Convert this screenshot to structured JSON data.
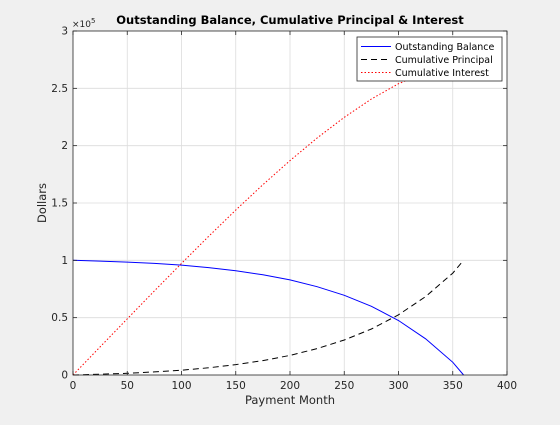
{
  "chart_data": {
    "type": "line",
    "title": "Outstanding Balance, Cumulative Principal & Interest",
    "xlabel": "Payment Month",
    "ylabel": "Dollars",
    "xlim": [
      0,
      400
    ],
    "ylim": [
      0,
      300000
    ],
    "xticks": [
      0,
      50,
      100,
      150,
      200,
      250,
      300,
      350,
      400
    ],
    "xtick_labels": [
      "0",
      "50",
      "100",
      "150",
      "200",
      "250",
      "300",
      "350",
      "400"
    ],
    "yticks": [
      0,
      50000,
      100000,
      150000,
      200000,
      250000,
      300000
    ],
    "ytick_labels": [
      "0",
      "0.5",
      "1",
      "1.5",
      "2",
      "2.5",
      "3"
    ],
    "y_exponent_label": "×10",
    "y_exponent_power": "5",
    "grid": true,
    "legend_position": "top-right",
    "series": [
      {
        "name": "Outstanding Balance",
        "color": "#0000ff",
        "style": "solid",
        "x": [
          0,
          25,
          50,
          75,
          100,
          125,
          150,
          175,
          200,
          225,
          250,
          275,
          300,
          325,
          350,
          360
        ],
        "y": [
          100000,
          99300,
          98500,
          97300,
          95800,
          93700,
          90900,
          87400,
          82900,
          77000,
          69500,
          59900,
          47500,
          31600,
          11100,
          0
        ]
      },
      {
        "name": "Cumulative Principal",
        "color": "#000000",
        "style": "dashed",
        "x": [
          0,
          25,
          50,
          75,
          100,
          125,
          150,
          175,
          200,
          225,
          250,
          275,
          300,
          325,
          350,
          360
        ],
        "y": [
          0,
          700,
          1500,
          2700,
          4200,
          6300,
          9100,
          12600,
          17100,
          23000,
          30500,
          40100,
          52500,
          68400,
          88900,
          100000
        ]
      },
      {
        "name": "Cumulative Interest",
        "color": "#ff0000",
        "style": "dotted",
        "x": [
          0,
          25,
          50,
          75,
          100,
          125,
          150,
          175,
          200,
          225,
          250,
          275,
          300,
          325,
          350,
          360
        ],
        "y": [
          0,
          24500,
          49000,
          73300,
          97300,
          120900,
          143900,
          166000,
          187000,
          206700,
          224700,
          240700,
          254000,
          263700,
          268900,
          269800
        ]
      }
    ]
  }
}
